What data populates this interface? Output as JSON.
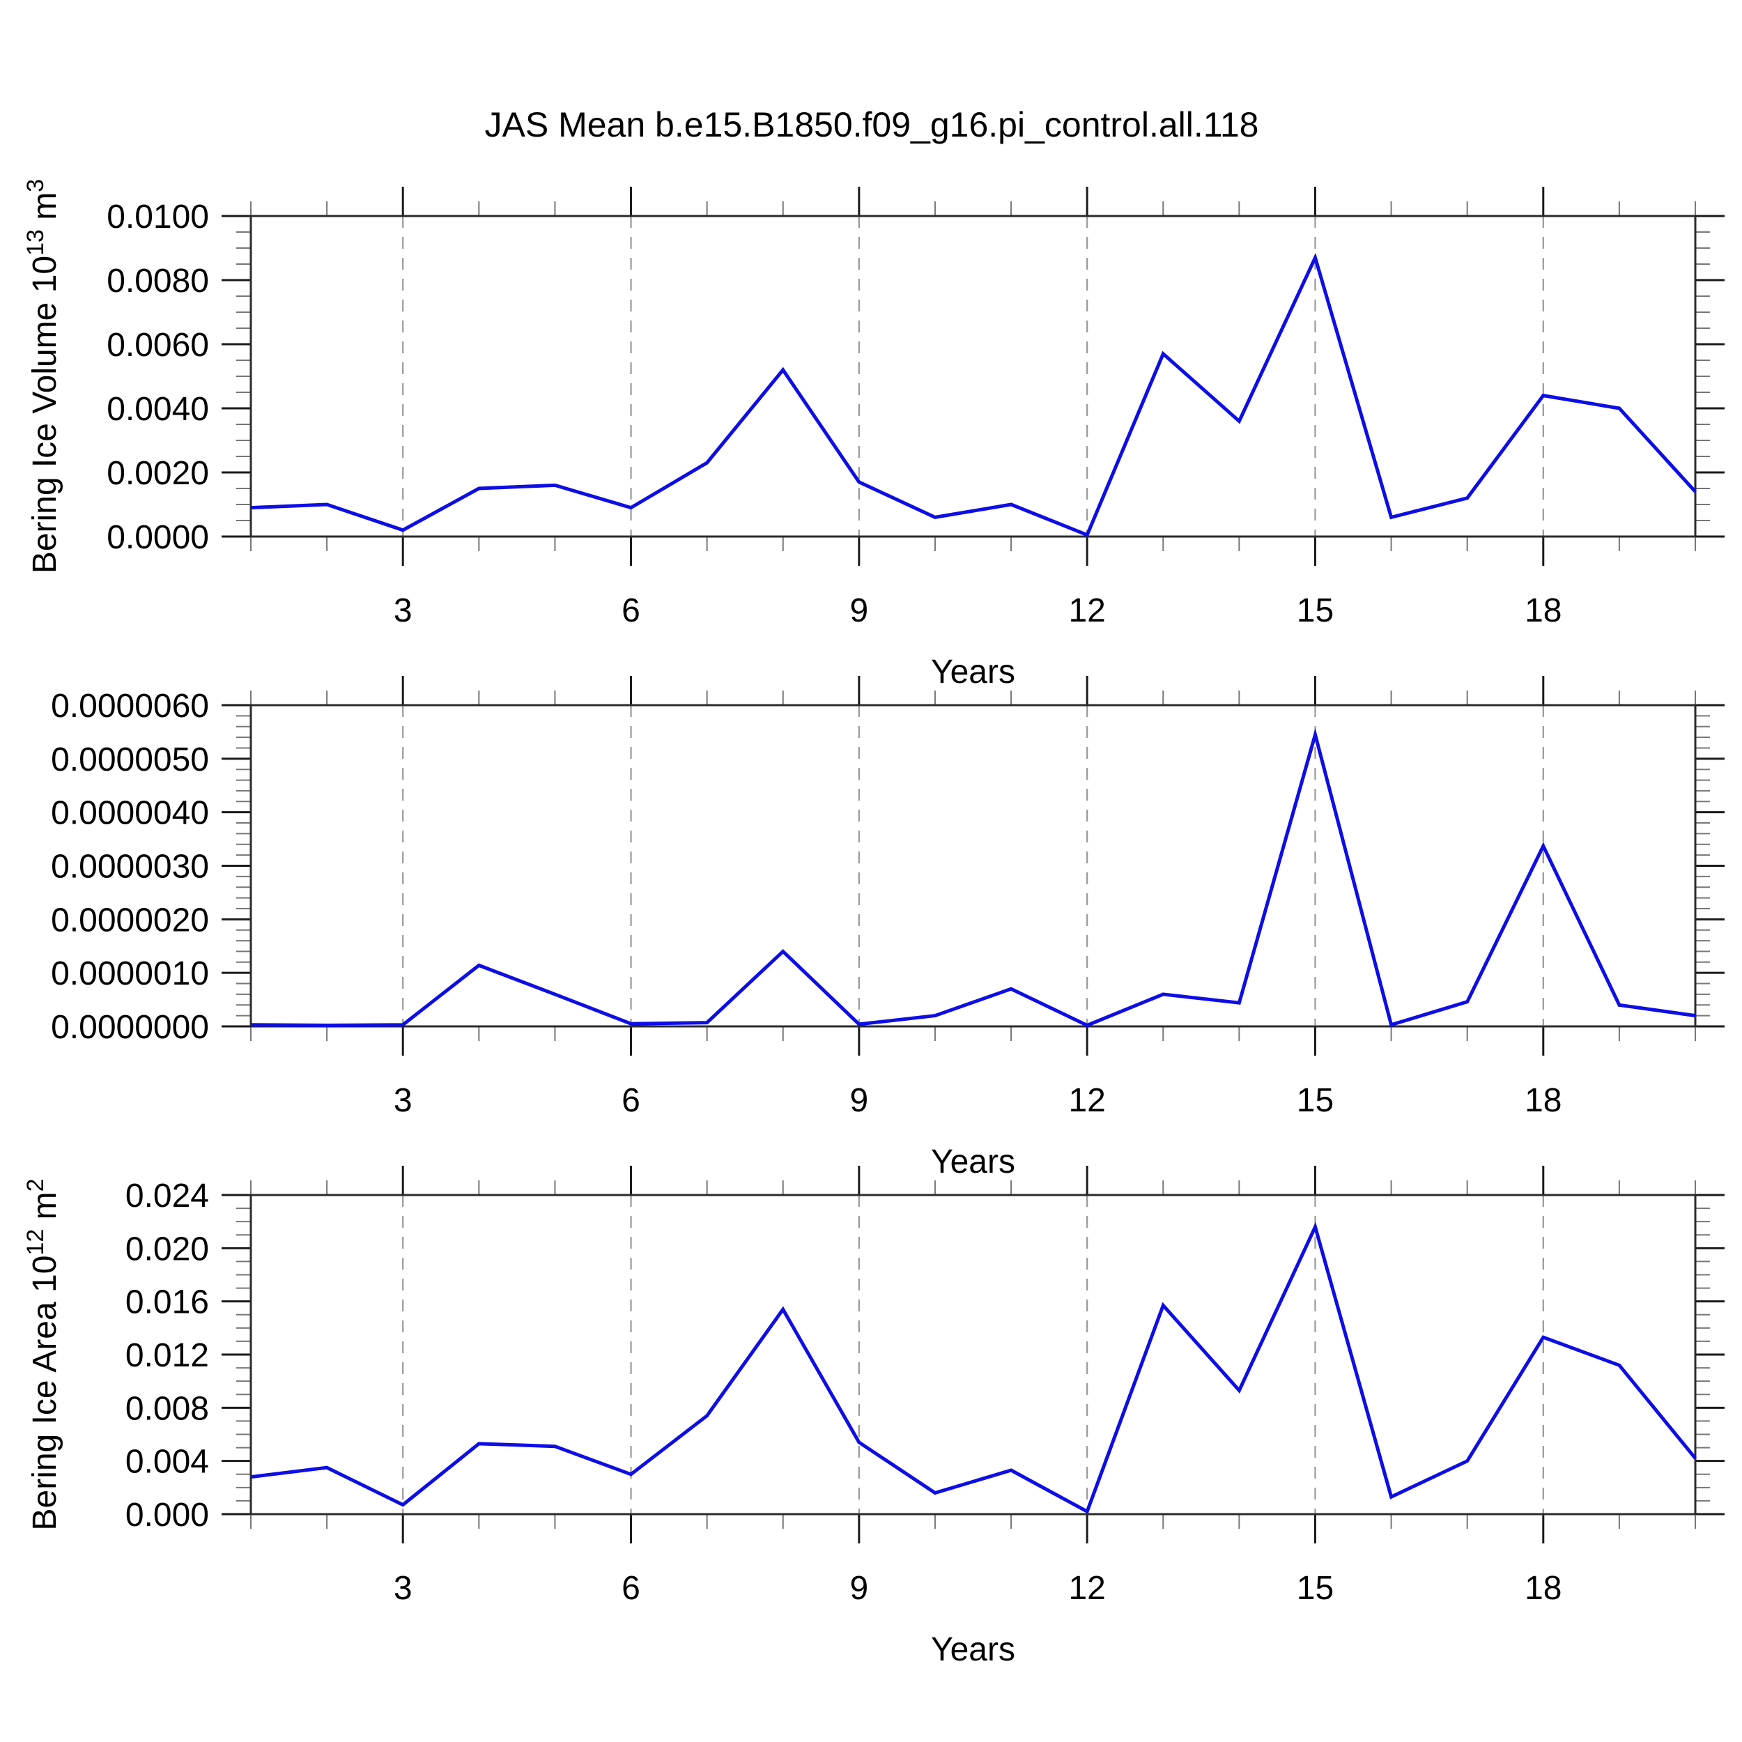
{
  "title": "JAS Mean b.e15.B1850.f09_g16.pi_control.all.118",
  "colors": {
    "line": "#0d0de8",
    "frame": "#2b2b2b",
    "major_tick": "#1a1a1a",
    "minor_tick": "#777777",
    "grid": "#999999",
    "text": "#000000",
    "background": "#ffffff"
  },
  "chart_data": [
    {
      "name": "bering-ice-volume",
      "type": "line",
      "ylabel_parts": [
        {
          "t": "Bering Ice Volume 10"
        },
        {
          "t": "13",
          "sup": true
        },
        {
          "t": " m"
        },
        {
          "t": "3",
          "sup": true
        }
      ],
      "xlabel": "Years",
      "x": [
        1,
        2,
        3,
        4,
        5,
        6,
        7,
        8,
        9,
        10,
        11,
        12,
        13,
        14,
        15,
        16,
        17,
        18,
        19,
        20
      ],
      "values": [
        0.0009,
        0.001,
        0.0002,
        0.0015,
        0.0016,
        0.0009,
        0.0023,
        0.0052,
        0.0017,
        0.0006,
        0.001,
        5e-05,
        0.0057,
        0.0036,
        0.0087,
        0.0006,
        0.0012,
        0.0044,
        0.004,
        0.0014
      ],
      "xlim": [
        1,
        20
      ],
      "ylim": [
        0,
        0.01
      ],
      "ytick_major_step": 0.002,
      "ytick_minor_step": 0.0005,
      "ytick_labels": [
        "0.0000",
        "0.0020",
        "0.0040",
        "0.0060",
        "0.0080",
        "0.0100"
      ],
      "xtick_major": [
        3,
        6,
        9,
        12,
        15,
        18
      ],
      "xtick_labels": [
        "3",
        "6",
        "9",
        "12",
        "15",
        "18"
      ],
      "xtick_minor_step": 1,
      "grid_at": [
        3,
        6,
        9,
        12,
        15,
        18
      ],
      "grid_dashed": true
    },
    {
      "name": "bering-ice-middle",
      "type": "line",
      "ylabel_parts": null,
      "xlabel": "Years",
      "x": [
        1,
        2,
        3,
        4,
        5,
        6,
        7,
        8,
        9,
        10,
        11,
        12,
        13,
        14,
        15,
        16,
        17,
        18,
        19,
        20
      ],
      "values": [
        3e-08,
        2e-08,
        3e-08,
        1.14e-06,
        6e-07,
        5e-08,
        7e-08,
        1.4e-06,
        4e-08,
        2e-07,
        7e-07,
        2e-08,
        6e-07,
        4.4e-07,
        5.45e-06,
        3e-08,
        4.6e-07,
        3.37e-06,
        4e-07,
        2e-07
      ],
      "xlim": [
        1,
        20
      ],
      "ylim": [
        0,
        6e-06
      ],
      "ytick_major_step": 1e-06,
      "ytick_minor_step": 2e-07,
      "ytick_labels": [
        "0.0000000",
        "0.0000010",
        "0.0000020",
        "0.0000030",
        "0.0000040",
        "0.0000050",
        "0.0000060"
      ],
      "xtick_major": [
        3,
        6,
        9,
        12,
        15,
        18
      ],
      "xtick_labels": [
        "3",
        "6",
        "9",
        "12",
        "15",
        "18"
      ],
      "xtick_minor_step": 1,
      "grid_at": [
        3,
        6,
        9,
        12,
        15,
        18
      ],
      "grid_dashed": true
    },
    {
      "name": "bering-ice-area",
      "type": "line",
      "ylabel_parts": [
        {
          "t": "Bering Ice Area 10"
        },
        {
          "t": "12",
          "sup": true
        },
        {
          "t": " m"
        },
        {
          "t": "2",
          "sup": true
        }
      ],
      "xlabel": "Years",
      "x": [
        1,
        2,
        3,
        4,
        5,
        6,
        7,
        8,
        9,
        10,
        11,
        12,
        13,
        14,
        15,
        16,
        17,
        18,
        19,
        20
      ],
      "values": [
        0.0028,
        0.0035,
        0.0007,
        0.0053,
        0.0051,
        0.003,
        0.0074,
        0.0154,
        0.0054,
        0.0016,
        0.0033,
        0.0002,
        0.0157,
        0.0093,
        0.0216,
        0.0013,
        0.004,
        0.0133,
        0.0112,
        0.0042
      ],
      "xlim": [
        1,
        20
      ],
      "ylim": [
        0,
        0.024
      ],
      "ytick_major_step": 0.004,
      "ytick_minor_step": 0.001,
      "ytick_labels": [
        "0.000",
        "0.004",
        "0.008",
        "0.012",
        "0.016",
        "0.020",
        "0.024"
      ],
      "xtick_major": [
        3,
        6,
        9,
        12,
        15,
        18
      ],
      "xtick_labels": [
        "3",
        "6",
        "9",
        "12",
        "15",
        "18"
      ],
      "xtick_minor_step": 1,
      "grid_at": [
        3,
        6,
        9,
        12,
        15,
        18
      ],
      "grid_dashed": true
    }
  ]
}
